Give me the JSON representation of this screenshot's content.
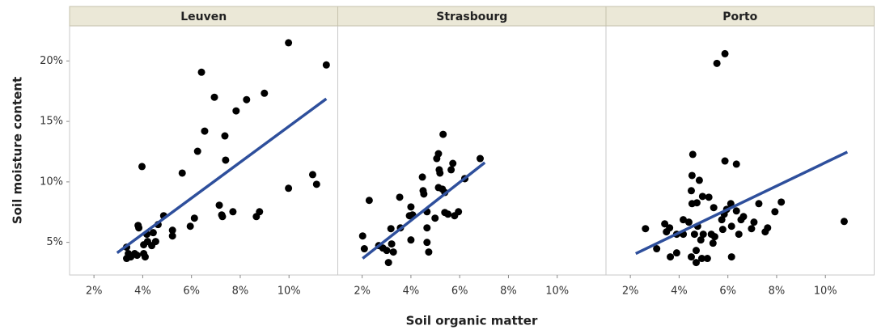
{
  "chart_data": {
    "type": "scatter",
    "xlabel": "Soil organic matter",
    "ylabel": "Soil moisture content",
    "xlim": [
      1,
      12
    ],
    "ylim": [
      2.3,
      22.9
    ],
    "xticks": [
      {
        "value": 2,
        "label": "2%"
      },
      {
        "value": 4,
        "label": "4%"
      },
      {
        "value": 6,
        "label": "6%"
      },
      {
        "value": 8,
        "label": "8%"
      },
      {
        "value": 10,
        "label": "10%"
      }
    ],
    "yticks": [
      {
        "value": 5,
        "label": "5%"
      },
      {
        "value": 10,
        "label": "10%"
      },
      {
        "value": 15,
        "label": "15%"
      },
      {
        "value": 20,
        "label": "20%"
      }
    ],
    "point_color": "#000000",
    "fit_color": "#2e4f9c",
    "panels": [
      {
        "title": "Leuven",
        "x": [
          9.98,
          11.53,
          6.41,
          8.99,
          6.94,
          8.26,
          7.83,
          6.54,
          7.37,
          6.25,
          7.4,
          3.97,
          5.62,
          9.98,
          10.97,
          11.13,
          7.14,
          7.27,
          7.24,
          7.7,
          8.79,
          8.66,
          6.12,
          5.95,
          4.86,
          3.81,
          3.84,
          4.63,
          4.43,
          4.17,
          5.22,
          5.22,
          4.2,
          4.37,
          4.53,
          4.04,
          3.34,
          3.41,
          3.51,
          3.67,
          4.04,
          4.1,
          3.77,
          3.34
        ],
        "y": [
          21.5,
          19.67,
          19.07,
          17.33,
          17.0,
          16.8,
          15.87,
          14.2,
          13.8,
          12.53,
          11.8,
          11.27,
          10.73,
          9.47,
          10.6,
          9.8,
          8.07,
          7.13,
          7.27,
          7.53,
          7.53,
          7.13,
          7.0,
          6.33,
          7.2,
          6.4,
          6.2,
          6.47,
          5.8,
          5.67,
          6.0,
          5.53,
          5.07,
          4.73,
          5.07,
          4.8,
          4.6,
          4.07,
          3.8,
          4.07,
          4.07,
          3.8,
          3.93,
          3.67
        ],
        "fit": {
          "x": [
            2.95,
            11.53
          ],
          "y": [
            4.13,
            16.87
          ]
        }
      },
      {
        "title": "Strasbourg",
        "x": [
          5.32,
          5.13,
          5.06,
          6.84,
          5.72,
          5.65,
          5.16,
          6.21,
          4.47,
          5.19,
          6.21,
          3.54,
          4.5,
          4.53,
          2.29,
          5.13,
          5.39,
          5.29,
          4.0,
          4.07,
          4.66,
          3.94,
          4.99,
          5.39,
          5.79,
          5.95,
          5.52,
          4.66,
          3.18,
          3.57,
          2.02,
          2.09,
          3.21,
          3.01,
          2.68,
          2.85,
          3.28,
          4.66,
          4.73,
          3.08,
          4.0
        ],
        "y": [
          13.93,
          12.33,
          11.93,
          11.93,
          11.53,
          11.0,
          11.0,
          10.27,
          10.4,
          10.73,
          10.27,
          8.73,
          9.27,
          9.0,
          8.47,
          9.53,
          9.13,
          9.4,
          7.93,
          7.27,
          7.53,
          7.2,
          7.0,
          7.47,
          7.2,
          7.53,
          7.33,
          6.2,
          6.13,
          6.2,
          5.53,
          4.47,
          4.87,
          4.33,
          4.73,
          4.53,
          4.2,
          5.0,
          4.2,
          3.33,
          5.2
        ],
        "fit": {
          "x": [
            2.02,
            7.03
          ],
          "y": [
            3.67,
            11.6
          ]
        }
      },
      {
        "title": "Porto",
        "x": [
          5.88,
          5.55,
          4.56,
          5.88,
          6.35,
          4.53,
          4.5,
          4.83,
          4.53,
          4.96,
          5.22,
          4.73,
          5.42,
          5.95,
          6.12,
          6.35,
          5.85,
          6.64,
          7.27,
          5.75,
          6.54,
          7.07,
          7.63,
          7.53,
          6.97,
          7.93,
          8.19,
          4.76,
          3.61,
          3.48,
          4.4,
          4.17,
          3.9,
          3.41,
          4.63,
          4.99,
          4.89,
          5.32,
          5.39,
          5.79,
          6.45,
          6.15,
          5.46,
          6.15,
          4.7,
          4.93,
          5.16,
          3.9,
          3.64,
          2.62,
          3.08,
          4.17,
          4.5,
          4.7,
          10.77
        ],
        "y": [
          20.6,
          19.8,
          12.27,
          11.73,
          11.47,
          10.53,
          9.27,
          10.13,
          8.2,
          8.8,
          8.73,
          8.27,
          7.87,
          7.73,
          8.2,
          7.6,
          7.33,
          7.13,
          8.2,
          6.87,
          6.87,
          6.67,
          6.2,
          5.87,
          6.13,
          7.53,
          8.33,
          6.33,
          6.2,
          5.87,
          6.67,
          6.87,
          5.67,
          6.53,
          5.67,
          5.67,
          5.2,
          5.67,
          4.93,
          6.07,
          5.67,
          3.8,
          5.47,
          6.33,
          4.33,
          3.67,
          3.67,
          4.13,
          3.8,
          6.13,
          4.47,
          5.67,
          3.8,
          3.33,
          6.73
        ],
        "fit": {
          "x": [
            2.22,
            10.9
          ],
          "y": [
            4.07,
            12.47
          ]
        }
      }
    ]
  }
}
